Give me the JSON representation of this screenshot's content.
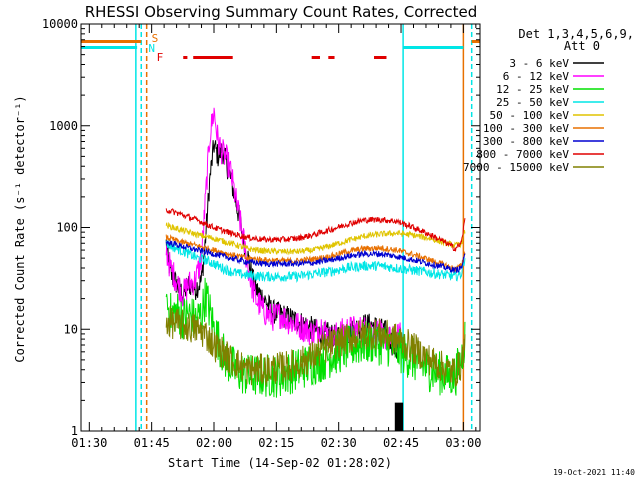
{
  "chart_data": {
    "type": "line",
    "title": "RHESSI Observing Summary Count Rates, Corrected",
    "xlabel": "Start Time (14-Sep-02 01:28:02)",
    "ylabel": "Corrected Count Rate (s⁻¹ detector⁻¹)",
    "x_unit": "minutes after 01:28:02",
    "xlim": [
      0,
      96
    ],
    "ylim": [
      1,
      10000
    ],
    "yscale": "log",
    "x_ticks": [
      {
        "t": 2,
        "label": "01:30"
      },
      {
        "t": 17,
        "label": "01:45"
      },
      {
        "t": 32,
        "label": "02:00"
      },
      {
        "t": 47,
        "label": "02:15"
      },
      {
        "t": 62,
        "label": "02:30"
      },
      {
        "t": 77,
        "label": "02:45"
      },
      {
        "t": 92,
        "label": "03:00"
      }
    ],
    "y_ticks": [
      {
        "v": 1,
        "label": "1"
      },
      {
        "v": 10,
        "label": "10"
      },
      {
        "v": 100,
        "label": "100"
      },
      {
        "v": 1000,
        "label": "1000"
      },
      {
        "v": 10000,
        "label": "10000"
      }
    ],
    "legend": {
      "placement": "right",
      "header_lines": [
        "Det 1,3,4,5,6,9,",
        "Att 0"
      ]
    },
    "series": [
      {
        "name": "3 - 6 keV",
        "color": "#000000",
        "noise": 0.12,
        "points": [
          [
            20.5,
            70
          ],
          [
            21.5,
            35
          ],
          [
            23,
            28
          ],
          [
            24.5,
            22
          ],
          [
            26,
            28
          ],
          [
            27.5,
            25
          ],
          [
            29,
            30
          ],
          [
            30,
            80
          ],
          [
            31,
            300
          ],
          [
            32,
            650
          ],
          [
            33,
            500
          ],
          [
            34,
            580
          ],
          [
            35,
            430
          ],
          [
            36,
            300
          ],
          [
            37,
            200
          ],
          [
            38,
            130
          ],
          [
            39,
            80
          ],
          [
            40,
            55
          ],
          [
            41,
            35
          ],
          [
            42,
            25
          ],
          [
            44,
            20
          ],
          [
            46,
            15
          ],
          [
            48,
            14
          ],
          [
            50,
            13
          ],
          [
            52,
            12
          ],
          [
            54,
            11
          ],
          [
            56,
            10
          ],
          [
            58,
            9
          ],
          [
            60,
            9
          ],
          [
            62,
            8
          ],
          [
            64,
            9
          ],
          [
            66,
            10
          ],
          [
            68,
            11
          ],
          [
            70,
            11
          ],
          [
            72,
            10
          ],
          [
            74,
            9
          ],
          [
            75,
            7
          ],
          [
            76,
            6
          ],
          [
            77,
            9
          ]
        ]
      },
      {
        "name": "6 - 12 keV",
        "color": "#ff00ff",
        "noise": 0.14,
        "points": [
          [
            20.5,
            60
          ],
          [
            21.5,
            40
          ],
          [
            23,
            30
          ],
          [
            24.5,
            22
          ],
          [
            26,
            28
          ],
          [
            27.5,
            30
          ],
          [
            29,
            50
          ],
          [
            30,
            200
          ],
          [
            31,
            800
          ],
          [
            32,
            1400
          ],
          [
            33,
            700
          ],
          [
            34,
            550
          ],
          [
            35,
            480
          ],
          [
            36,
            350
          ],
          [
            37,
            210
          ],
          [
            38,
            130
          ],
          [
            39,
            80
          ],
          [
            40,
            45
          ],
          [
            41,
            28
          ],
          [
            42,
            20
          ],
          [
            44,
            15
          ],
          [
            46,
            13
          ],
          [
            48,
            14
          ],
          [
            50,
            12
          ],
          [
            52,
            11
          ],
          [
            54,
            10
          ],
          [
            56,
            9
          ],
          [
            58,
            11
          ],
          [
            60,
            8
          ],
          [
            62,
            9
          ],
          [
            64,
            10
          ],
          [
            66,
            10
          ],
          [
            68,
            10
          ],
          [
            70,
            10
          ],
          [
            72,
            9
          ],
          [
            74,
            8
          ],
          [
            76,
            8
          ],
          [
            77,
            9
          ]
        ]
      },
      {
        "name": "12 - 25 keV",
        "color": "#00e000",
        "noise": 0.22,
        "points": [
          [
            20.5,
            20
          ],
          [
            21.5,
            14
          ],
          [
            23,
            15
          ],
          [
            24.5,
            13
          ],
          [
            26,
            14
          ],
          [
            27.5,
            12
          ],
          [
            29,
            14
          ],
          [
            30,
            22
          ],
          [
            31,
            15
          ],
          [
            32,
            10
          ],
          [
            33,
            8
          ],
          [
            34,
            6
          ],
          [
            35,
            5
          ],
          [
            37,
            4
          ],
          [
            40,
            3.5
          ],
          [
            44,
            3.5
          ],
          [
            48,
            3.5
          ],
          [
            52,
            4
          ],
          [
            55,
            4.5
          ],
          [
            58,
            5
          ],
          [
            62,
            6
          ],
          [
            66,
            7
          ],
          [
            70,
            7.5
          ],
          [
            74,
            7
          ],
          [
            77,
            6
          ],
          [
            80,
            5
          ],
          [
            84,
            4
          ],
          [
            88,
            3.5
          ],
          [
            90,
            3.5
          ],
          [
            91.5,
            5
          ],
          [
            92.5,
            9
          ]
        ]
      },
      {
        "name": "25 - 50 keV",
        "color": "#00e6e6",
        "noise": 0.05,
        "points": [
          [
            20.5,
            70
          ],
          [
            22,
            65
          ],
          [
            24,
            60
          ],
          [
            26,
            55
          ],
          [
            28,
            50
          ],
          [
            30,
            48
          ],
          [
            32,
            44
          ],
          [
            34,
            40
          ],
          [
            36,
            37
          ],
          [
            38,
            35
          ],
          [
            40,
            34
          ],
          [
            44,
            33
          ],
          [
            48,
            33
          ],
          [
            52,
            33
          ],
          [
            56,
            35
          ],
          [
            60,
            37
          ],
          [
            64,
            40
          ],
          [
            68,
            42
          ],
          [
            72,
            42
          ],
          [
            76,
            40
          ],
          [
            80,
            38
          ],
          [
            84,
            36
          ],
          [
            88,
            34
          ],
          [
            90,
            33
          ],
          [
            91.5,
            35
          ],
          [
            92.5,
            55
          ]
        ]
      },
      {
        "name": "50 - 100 keV",
        "color": "#e0c400",
        "noise": 0.03,
        "points": [
          [
            20.5,
            105
          ],
          [
            24,
            95
          ],
          [
            28,
            85
          ],
          [
            32,
            78
          ],
          [
            36,
            70
          ],
          [
            40,
            62
          ],
          [
            44,
            59
          ],
          [
            48,
            58
          ],
          [
            52,
            58
          ],
          [
            56,
            60
          ],
          [
            60,
            66
          ],
          [
            64,
            74
          ],
          [
            68,
            82
          ],
          [
            72,
            86
          ],
          [
            76,
            88
          ],
          [
            80,
            84
          ],
          [
            84,
            78
          ],
          [
            88,
            70
          ],
          [
            90,
            66
          ],
          [
            91.5,
            70
          ],
          [
            92.5,
            95
          ]
        ]
      },
      {
        "name": "100 - 300 keV",
        "color": "#e87000",
        "noise": 0.03,
        "points": [
          [
            20.5,
            80
          ],
          [
            24,
            72
          ],
          [
            28,
            66
          ],
          [
            32,
            60
          ],
          [
            36,
            54
          ],
          [
            40,
            50
          ],
          [
            44,
            48
          ],
          [
            48,
            47
          ],
          [
            52,
            47
          ],
          [
            56,
            49
          ],
          [
            60,
            52
          ],
          [
            64,
            58
          ],
          [
            68,
            62
          ],
          [
            72,
            63
          ],
          [
            76,
            60
          ],
          [
            80,
            54
          ],
          [
            84,
            48
          ],
          [
            88,
            42
          ],
          [
            90,
            39
          ],
          [
            91.5,
            42
          ],
          [
            92.5,
            60
          ]
        ]
      },
      {
        "name": "300 - 800 keV",
        "color": "#0000d0",
        "noise": 0.03,
        "points": [
          [
            20.5,
            72
          ],
          [
            24,
            66
          ],
          [
            28,
            60
          ],
          [
            32,
            55
          ],
          [
            36,
            50
          ],
          [
            40,
            46
          ],
          [
            44,
            44
          ],
          [
            48,
            44
          ],
          [
            52,
            44
          ],
          [
            56,
            45
          ],
          [
            60,
            48
          ],
          [
            64,
            52
          ],
          [
            68,
            55
          ],
          [
            72,
            55
          ],
          [
            76,
            52
          ],
          [
            80,
            48
          ],
          [
            84,
            44
          ],
          [
            88,
            40
          ],
          [
            90,
            38
          ],
          [
            91.5,
            40
          ],
          [
            92.5,
            55
          ]
        ]
      },
      {
        "name": "800 - 7000 keV",
        "color": "#e00000",
        "noise": 0.03,
        "points": [
          [
            20.5,
            150
          ],
          [
            24,
            135
          ],
          [
            28,
            118
          ],
          [
            32,
            100
          ],
          [
            36,
            88
          ],
          [
            40,
            80
          ],
          [
            44,
            76
          ],
          [
            48,
            76
          ],
          [
            52,
            78
          ],
          [
            56,
            85
          ],
          [
            60,
            95
          ],
          [
            64,
            108
          ],
          [
            68,
            118
          ],
          [
            72,
            120
          ],
          [
            76,
            115
          ],
          [
            80,
            100
          ],
          [
            84,
            85
          ],
          [
            88,
            70
          ],
          [
            90,
            62
          ],
          [
            91.5,
            70
          ],
          [
            92.5,
            130
          ]
        ]
      },
      {
        "name": "7000 - 15000 keV",
        "color": "#808000",
        "noise": 0.16,
        "points": [
          [
            20.5,
            12
          ],
          [
            24,
            11
          ],
          [
            28,
            10
          ],
          [
            30,
            9
          ],
          [
            32,
            7
          ],
          [
            34,
            6
          ],
          [
            36,
            5
          ],
          [
            38,
            4.5
          ],
          [
            40,
            4
          ],
          [
            44,
            4
          ],
          [
            48,
            4.2
          ],
          [
            52,
            4.5
          ],
          [
            56,
            5.5
          ],
          [
            60,
            7
          ],
          [
            64,
            8
          ],
          [
            68,
            9
          ],
          [
            72,
            9
          ],
          [
            76,
            8
          ],
          [
            80,
            6.5
          ],
          [
            84,
            5
          ],
          [
            88,
            4
          ],
          [
            90,
            3.8
          ],
          [
            91.5,
            4.5
          ],
          [
            92.5,
            8
          ]
        ]
      }
    ],
    "annotations": {
      "s_label": "S",
      "n_label": "N",
      "f_label": "F",
      "footer_date": "19-Oct-2021 11:40",
      "saa_bars": [
        [
          0,
          13.5
        ],
        [
          77.5,
          92
        ]
      ],
      "attenuator_bars": [
        [
          0,
          14.5
        ],
        [
          94,
          96
        ]
      ],
      "flare_segments": [
        [
          24.6,
          25.6
        ],
        [
          27,
          36.5
        ],
        [
          55.5,
          57.5
        ],
        [
          59.5,
          61
        ],
        [
          70.5,
          73.5
        ]
      ],
      "saa_boundaries": [
        [
          13.2,
          "solid"
        ],
        [
          14.5,
          "dashed"
        ],
        [
          77.5,
          "solid"
        ],
        [
          94,
          "dashed"
        ]
      ],
      "night_boundaries": [
        [
          15.8,
          "dashed"
        ],
        [
          92,
          "solid"
        ]
      ]
    },
    "grid": false
  }
}
